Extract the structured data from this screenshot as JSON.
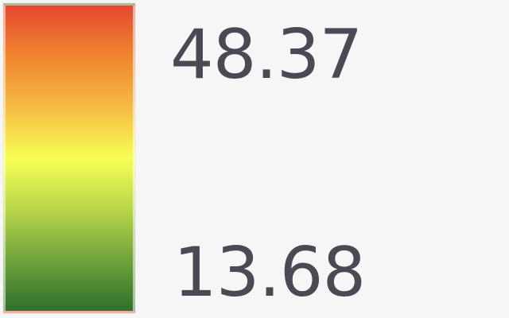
{
  "legend": {
    "max_label": "48.37",
    "min_label": "13.68",
    "gradient_stops": [
      "#e5482f",
      "#f0852f",
      "#f5bb45",
      "#f7ff55",
      "#b9d64a",
      "#6fa33c",
      "#2f6f29"
    ]
  }
}
